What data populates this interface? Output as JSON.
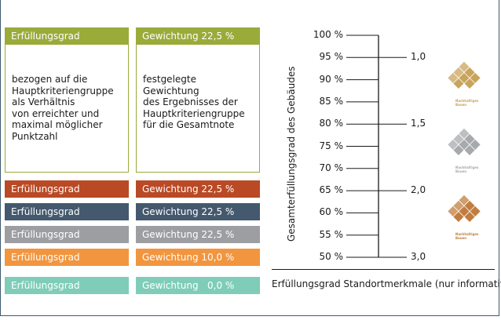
{
  "header": {
    "left_label": "Erfüllungsgrad",
    "right_label": "Gewichtung 22,5 %",
    "color": "#9aab3a"
  },
  "descriptions": {
    "left": "bezogen auf die\nHauptkriteriengruppe\nals Verhältnis\nvon erreichter und\nmaximal möglicher\nPunktzahl",
    "right": "festgelegte Gewichtung\ndes Ergebnisses der\nHauptkriteriengruppe\nfür die Gesamtnote"
  },
  "rows": [
    {
      "left": "Erfüllungsgrad",
      "right": "Gewichtung 22,5 %",
      "color": "#b94a25"
    },
    {
      "left": "Erfüllungsgrad",
      "right": "Gewichtung 22,5 %",
      "color": "#44596e"
    },
    {
      "left": "Erfüllungsgrad",
      "right": "Gewichtung 22,5 %",
      "color": "#9c9ea1"
    },
    {
      "left": "Erfüllungsgrad",
      "right": "Gewichtung 10,0 %",
      "color": "#f2953f"
    },
    {
      "left": "Erfüllungsgrad",
      "right": "Gewichtung   0,0 %",
      "color": "#7fcdb9"
    }
  ],
  "scale": {
    "ticks": [
      "100 %",
      "95 %",
      "90 %",
      "85 %",
      "80 %",
      "75 %",
      "70 %",
      "65 %",
      "60 %",
      "55 %",
      "50 %"
    ],
    "grades": [
      {
        "label": "1,0",
        "percent": 95
      },
      {
        "label": "1,5",
        "percent": 80
      },
      {
        "label": "2,0",
        "percent": 65
      },
      {
        "label": "3,0",
        "percent": 50
      }
    ],
    "y_title": "Gesamterfüllungsgrad des Gebäudes"
  },
  "logos": [
    {
      "name": "gold",
      "color": "#c9a45c",
      "text": "Nachhaltiges\nBauen"
    },
    {
      "name": "silver",
      "color": "#a7a9ac",
      "text": "Nachhaltiges\nBauen"
    },
    {
      "name": "bronze",
      "color": "#c27d3e",
      "text": "Nachhaltiges\nBauen"
    }
  ],
  "footer": "Erfüllungsgrad Standortmerkmale (nur informativ)"
}
